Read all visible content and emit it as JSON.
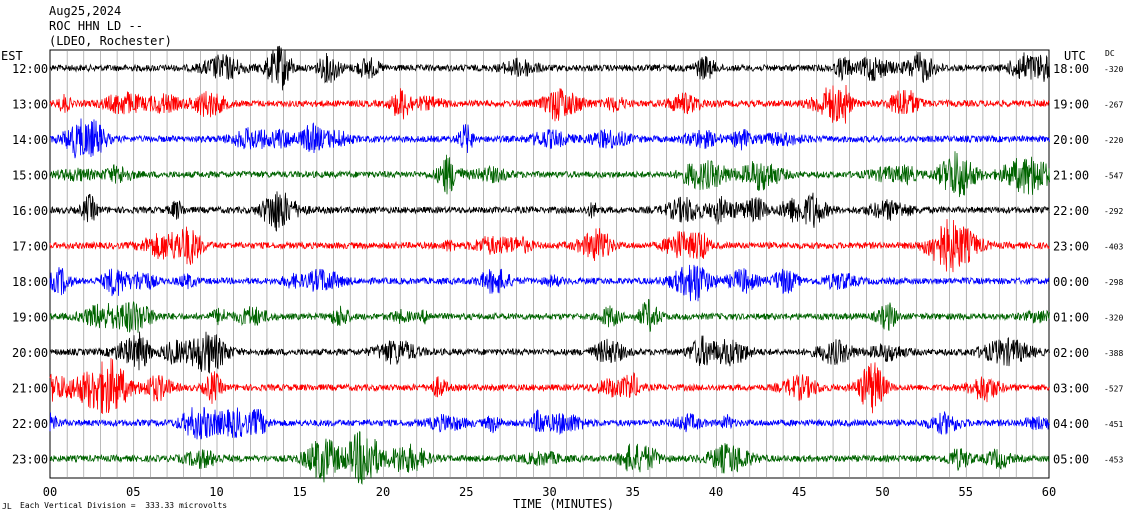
{
  "header": {
    "date": "Aug25,2024",
    "station": "ROC HHN LD --",
    "network": "(LDEO, Rochester)"
  },
  "chart_data": {
    "type": "line",
    "title": "",
    "left_axis_label": "EST",
    "right_axis_label": "UTC",
    "dc_label": "DC",
    "xlabel": "TIME (MINUTES)",
    "xlim": [
      0,
      60
    ],
    "x_ticks": [
      "00",
      "05",
      "10",
      "15",
      "20",
      "25",
      "30",
      "35",
      "40",
      "45",
      "50",
      "55",
      "60"
    ],
    "scale_note": "Each Vertical Division =  333.33 microvolts",
    "footer_mark": "JL",
    "trace_colors": [
      "#000000",
      "#ff0000",
      "#0000ff",
      "#006400"
    ],
    "rows": [
      {
        "est": "12:00",
        "utc": "18:00",
        "dc": "-320",
        "color": "#000000"
      },
      {
        "est": "13:00",
        "utc": "19:00",
        "dc": "-267",
        "color": "#ff0000"
      },
      {
        "est": "14:00",
        "utc": "20:00",
        "dc": "-220",
        "color": "#0000ff"
      },
      {
        "est": "15:00",
        "utc": "21:00",
        "dc": "-547",
        "color": "#006400"
      },
      {
        "est": "16:00",
        "utc": "22:00",
        "dc": "-292",
        "color": "#000000"
      },
      {
        "est": "17:00",
        "utc": "23:00",
        "dc": "-403",
        "color": "#ff0000"
      },
      {
        "est": "18:00",
        "utc": "00:00",
        "dc": "-298",
        "color": "#0000ff"
      },
      {
        "est": "19:00",
        "utc": "01:00",
        "dc": "-320",
        "color": "#006400"
      },
      {
        "est": "20:00",
        "utc": "02:00",
        "dc": "-388",
        "color": "#000000"
      },
      {
        "est": "21:00",
        "utc": "03:00",
        "dc": "-527",
        "color": "#ff0000"
      },
      {
        "est": "22:00",
        "utc": "04:00",
        "dc": "-451",
        "color": "#0000ff"
      },
      {
        "est": "23:00",
        "utc": "05:00",
        "dc": "-453",
        "color": "#006400"
      }
    ]
  }
}
